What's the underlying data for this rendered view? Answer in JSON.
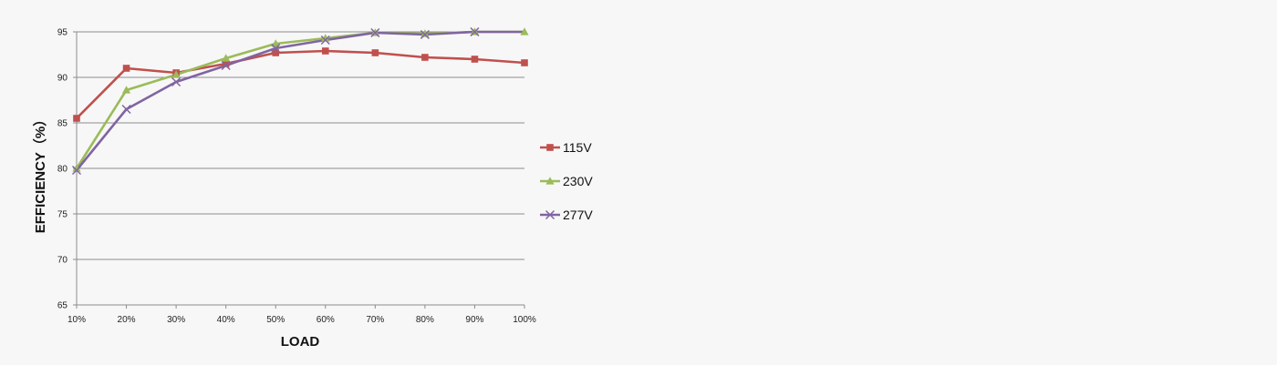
{
  "chart_data": {
    "type": "line",
    "title": "",
    "xlabel": "LOAD",
    "ylabel": "EFFICIENCY（%）",
    "categories": [
      "10%",
      "20%",
      "30%",
      "40%",
      "50%",
      "60%",
      "70%",
      "80%",
      "90%",
      "100%"
    ],
    "ylim": [
      65,
      95
    ],
    "yticks": [
      65,
      70,
      75,
      80,
      85,
      90,
      95
    ],
    "grid": true,
    "legend_position": "right",
    "series": [
      {
        "name": "115V",
        "color": "#c0504d",
        "marker": "square",
        "values": [
          85.5,
          91.0,
          90.5,
          91.5,
          92.7,
          92.9,
          92.7,
          92.2,
          92.0,
          91.6
        ]
      },
      {
        "name": "230V",
        "color": "#9bbb59",
        "marker": "triangle",
        "values": [
          80.0,
          88.6,
          90.3,
          92.1,
          93.7,
          94.3,
          94.9,
          94.8,
          95.0,
          95.0
        ]
      },
      {
        "name": "277V",
        "color": "#8064a2",
        "marker": "x",
        "values": [
          79.8,
          86.5,
          89.5,
          91.3,
          93.2,
          94.1,
          94.9,
          94.7,
          95.0,
          95.2
        ]
      }
    ]
  }
}
